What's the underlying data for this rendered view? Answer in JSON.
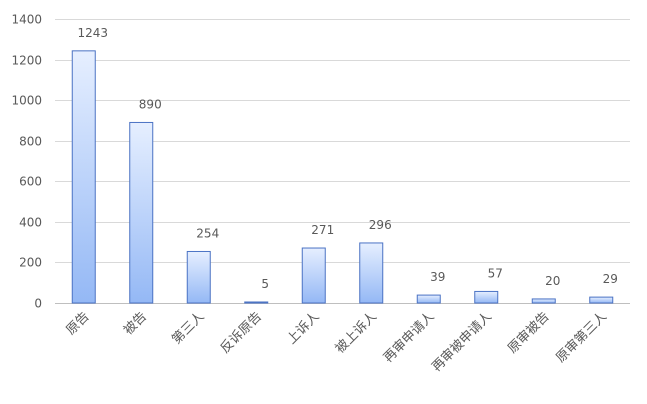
{
  "chart_data": {
    "type": "bar",
    "title": "",
    "xlabel": "",
    "ylabel": "",
    "categories": [
      "原告",
      "被告",
      "第三人",
      "反诉原告",
      "上诉人",
      "被上诉人",
      "再审申请人",
      "再审被申请人",
      "原审被告",
      "原审第三人"
    ],
    "values": [
      1243,
      890,
      254,
      5,
      271,
      296,
      39,
      57,
      20,
      29
    ],
    "data_labels": [
      "1243",
      "890",
      "254",
      "5",
      "271",
      "296",
      "39",
      "57",
      "20",
      "29"
    ],
    "ylim": [
      0,
      1400
    ],
    "y_ticks": [
      0,
      200,
      400,
      600,
      800,
      1000,
      1200,
      1400
    ],
    "y_tick_labels": [
      "0",
      "200",
      "400",
      "600",
      "800",
      "1000",
      "1200",
      "1400"
    ],
    "grid": true,
    "legend": "none",
    "colors": {
      "bar_top": "#e6efff",
      "bar_bottom": "#94b8f5",
      "bar_border": "#4a72c4",
      "grid": "#d9d9d9",
      "text": "#595959"
    }
  }
}
